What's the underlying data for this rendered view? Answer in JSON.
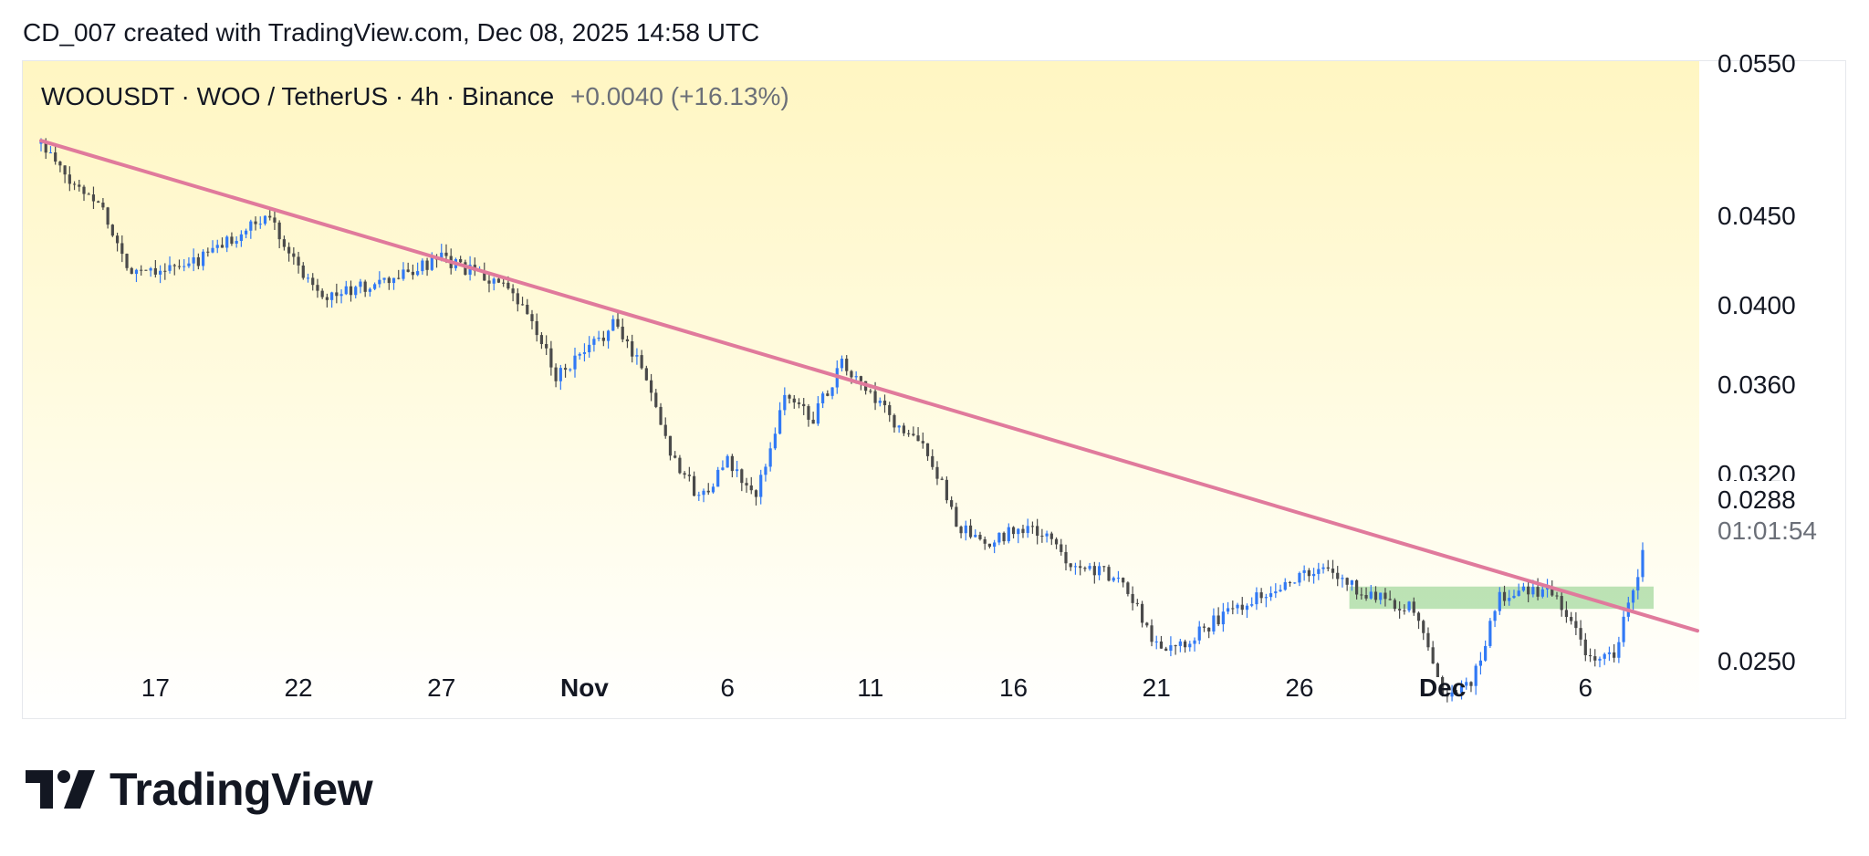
{
  "header": {
    "caption": "CD_007 created with TradingView.com, Dec 08, 2025 14:58 UTC"
  },
  "symbol": {
    "title": "WOOUSDT · WOO / TetherUS · 4h · Binance",
    "change": "+0.0040 (+16.13%)"
  },
  "price_axis": {
    "labels": [
      {
        "text": "0.0550",
        "value": 0.055
      },
      {
        "text": "0.0450",
        "value": 0.045
      },
      {
        "text": "0.0400",
        "value": 0.04
      },
      {
        "text": "0.0360",
        "value": 0.036
      },
      {
        "text": "0.0320",
        "value": 0.032
      },
      {
        "text": "0.0250",
        "value": 0.025
      }
    ],
    "last_price": "0.0288",
    "countdown": "01:01:54"
  },
  "time_axis": {
    "labels": [
      {
        "text": "17",
        "bold": false
      },
      {
        "text": "22",
        "bold": false
      },
      {
        "text": "27",
        "bold": false
      },
      {
        "text": "Nov",
        "bold": true
      },
      {
        "text": "6",
        "bold": false
      },
      {
        "text": "11",
        "bold": false
      },
      {
        "text": "16",
        "bold": false
      },
      {
        "text": "21",
        "bold": false
      },
      {
        "text": "26",
        "bold": false
      },
      {
        "text": "Dec",
        "bold": true
      },
      {
        "text": "6",
        "bold": false
      }
    ]
  },
  "footer": {
    "brand": "TradingView",
    "logo_icon": "tradingview-logo-icon"
  },
  "colors": {
    "up": "#3179f5",
    "down": "#4a4a4a",
    "trendline": "#e07a9c",
    "zone": "#8fd18b",
    "bg_top": "#fff6c2"
  },
  "chart_data": {
    "type": "candlestick",
    "title": "WOOUSDT · WOO / TetherUS · 4h · Binance",
    "scale": "log",
    "x_range": [
      "Oct 13, 2025",
      "Dec 08, 2025"
    ],
    "y_range": [
      0.0232,
      0.0552
    ],
    "close_path": [
      {
        "date": "Oct 13",
        "price": 0.0495
      },
      {
        "date": "Oct 14",
        "price": 0.047
      },
      {
        "date": "Oct 15",
        "price": 0.046
      },
      {
        "date": "Oct 16",
        "price": 0.042
      },
      {
        "date": "Oct 17",
        "price": 0.042
      },
      {
        "date": "Oct 18",
        "price": 0.042
      },
      {
        "date": "Oct 20",
        "price": 0.044
      },
      {
        "date": "Oct 21",
        "price": 0.045
      },
      {
        "date": "Oct 22",
        "price": 0.042
      },
      {
        "date": "Oct 23",
        "price": 0.0405
      },
      {
        "date": "Oct 25",
        "price": 0.0412
      },
      {
        "date": "Oct 27",
        "price": 0.0425
      },
      {
        "date": "Oct 29",
        "price": 0.0412
      },
      {
        "date": "Oct 30",
        "price": 0.0395
      },
      {
        "date": "Oct 31",
        "price": 0.0365
      },
      {
        "date": "Nov 1",
        "price": 0.0375
      },
      {
        "date": "Nov 2",
        "price": 0.039
      },
      {
        "date": "Nov 3",
        "price": 0.037
      },
      {
        "date": "Nov 4",
        "price": 0.033
      },
      {
        "date": "Nov 5",
        "price": 0.031
      },
      {
        "date": "Nov 6",
        "price": 0.0325
      },
      {
        "date": "Nov 7",
        "price": 0.031
      },
      {
        "date": "Nov 8",
        "price": 0.0355
      },
      {
        "date": "Nov 9",
        "price": 0.0345
      },
      {
        "date": "Nov 10",
        "price": 0.037
      },
      {
        "date": "Nov 11",
        "price": 0.0355
      },
      {
        "date": "Nov 12",
        "price": 0.034
      },
      {
        "date": "Nov 13",
        "price": 0.033
      },
      {
        "date": "Nov 14",
        "price": 0.03
      },
      {
        "date": "Nov 15",
        "price": 0.029
      },
      {
        "date": "Nov 16",
        "price": 0.0298
      },
      {
        "date": "Nov 17",
        "price": 0.0296
      },
      {
        "date": "Nov 18",
        "price": 0.0285
      },
      {
        "date": "Nov 19",
        "price": 0.0282
      },
      {
        "date": "Nov 20",
        "price": 0.0275
      },
      {
        "date": "Nov 21",
        "price": 0.0255
      },
      {
        "date": "Nov 22",
        "price": 0.0257
      },
      {
        "date": "Nov 24",
        "price": 0.027
      },
      {
        "date": "Nov 26",
        "price": 0.028
      },
      {
        "date": "Nov 27",
        "price": 0.0282
      },
      {
        "date": "Nov 28",
        "price": 0.0275
      },
      {
        "date": "Nov 30",
        "price": 0.0268
      },
      {
        "date": "Dec 1",
        "price": 0.024
      },
      {
        "date": "Dec 2",
        "price": 0.0242
      },
      {
        "date": "Dec 3",
        "price": 0.0272
      },
      {
        "date": "Dec 4",
        "price": 0.0275
      },
      {
        "date": "Dec 5",
        "price": 0.0273
      },
      {
        "date": "Dec 6",
        "price": 0.0252
      },
      {
        "date": "Dec 7",
        "price": 0.0252
      },
      {
        "date": "Dec 8",
        "price": 0.0288
      }
    ],
    "trendline": {
      "start": {
        "date": "Oct 13",
        "price": 0.0497
      },
      "end": {
        "date": "Dec 8",
        "price": 0.0266
      }
    },
    "support_zone": {
      "from_date": "Nov 28",
      "to_date": "Dec 8",
      "price_low": 0.0268,
      "price_high": 0.0276
    }
  }
}
